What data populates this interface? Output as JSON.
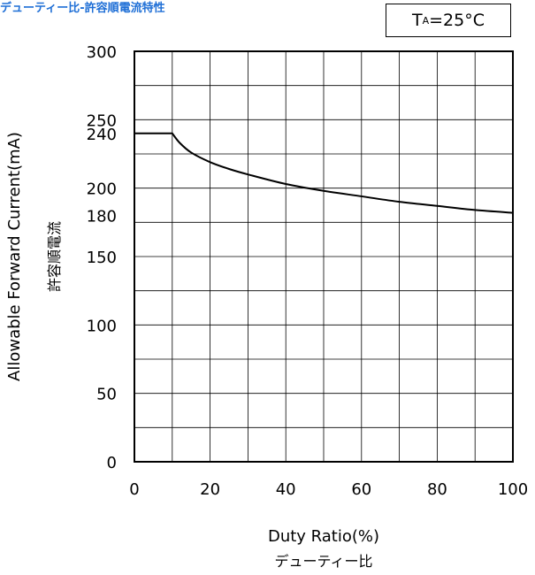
{
  "title": "デューティー比-許容順電流特性",
  "condition": {
    "symbol": "T",
    "subscript": "A",
    "value": "=25°C"
  },
  "chart_data": {
    "type": "line",
    "xlabel": "Duty Ratio(%)",
    "xlabel_sub": "デューティー比",
    "ylabel": "Allowable Forward Current(mA)",
    "ylabel_sub": "許容順電流",
    "xlim": [
      0,
      100
    ],
    "ylim": [
      0,
      300
    ],
    "x_ticks": [
      0,
      20,
      40,
      60,
      80,
      100
    ],
    "y_ticks": [
      0,
      50,
      100,
      150,
      180,
      200,
      240,
      250,
      300
    ],
    "grid": true,
    "series": [
      {
        "x": [
          0,
          10,
          12,
          15,
          20,
          25,
          30,
          40,
          50,
          60,
          70,
          80,
          90,
          100
        ],
        "y": [
          240,
          240,
          233,
          226,
          219,
          214,
          210,
          203,
          198,
          194,
          190,
          187,
          184,
          182
        ]
      }
    ]
  }
}
